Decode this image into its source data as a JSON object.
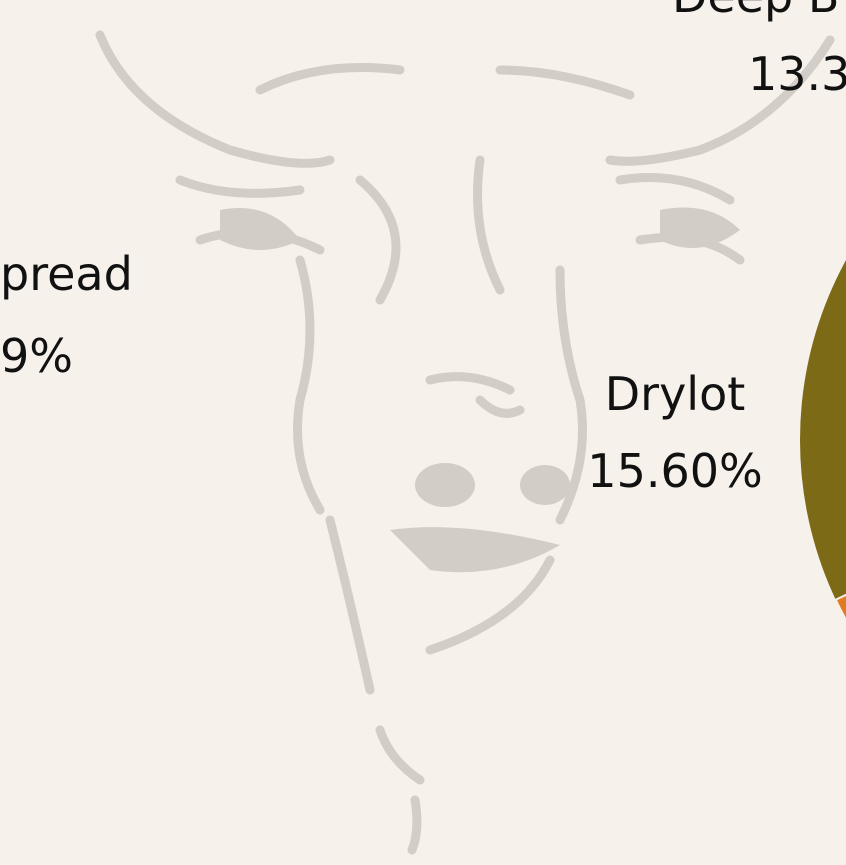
{
  "labels": [
    {
      "name": "Deep B",
      "value": "13.3"
    },
    {
      "name": "pread",
      "value": "9%"
    },
    {
      "name": "Drylot",
      "value": "15.60%"
    }
  ]
}
